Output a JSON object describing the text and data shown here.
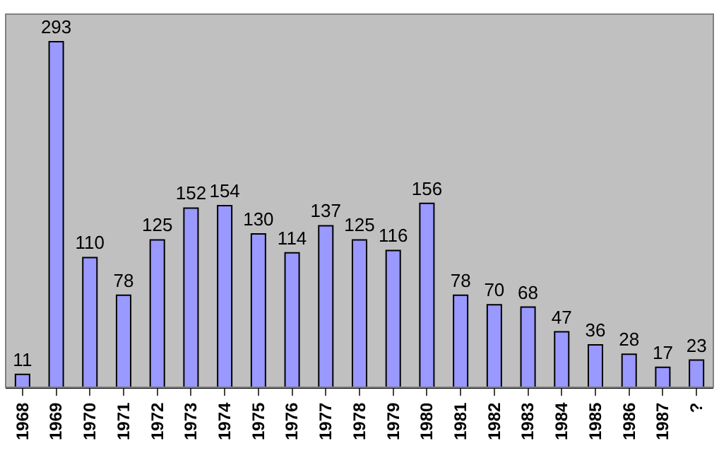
{
  "chart_data": {
    "type": "bar",
    "categories": [
      "1968",
      "1969",
      "1970",
      "1971",
      "1972",
      "1973",
      "1974",
      "1975",
      "1976",
      "1977",
      "1978",
      "1979",
      "1980",
      "1981",
      "1982",
      "1983",
      "1984",
      "1985",
      "1986",
      "1987",
      "?"
    ],
    "values": [
      11,
      293,
      110,
      78,
      125,
      152,
      154,
      130,
      114,
      137,
      125,
      116,
      156,
      78,
      70,
      68,
      47,
      36,
      28,
      17,
      23
    ],
    "color": "#9999ff",
    "data_labels": true
  }
}
